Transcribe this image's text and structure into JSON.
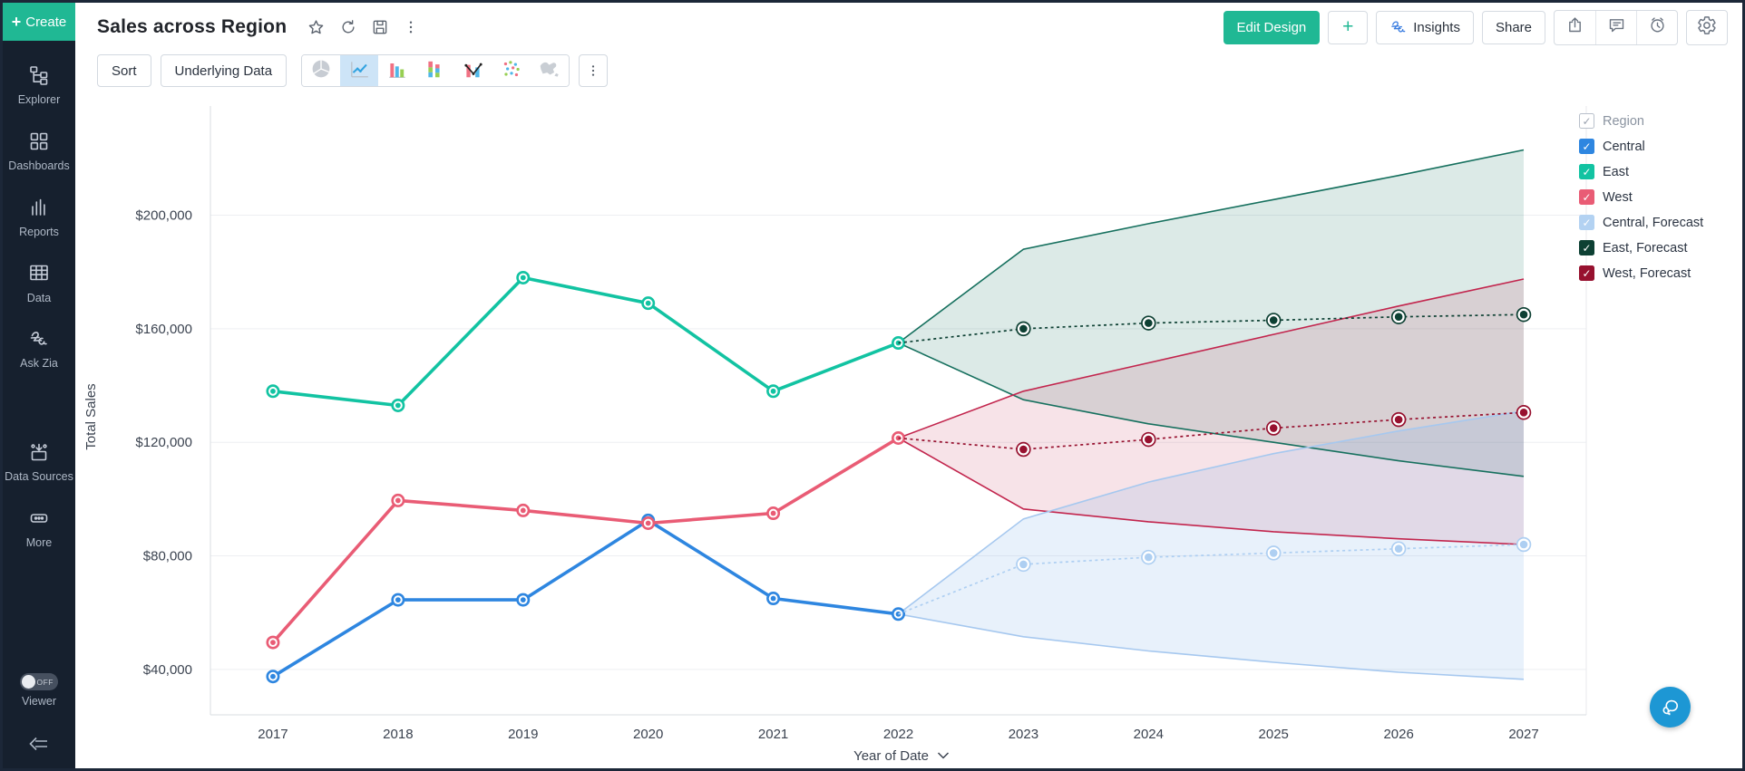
{
  "sidebar": {
    "create_label": "Create",
    "items": [
      {
        "icon": "explorer-icon",
        "label": "Explorer"
      },
      {
        "icon": "dashboards-icon",
        "label": "Dashboards"
      },
      {
        "icon": "reports-icon",
        "label": "Reports"
      },
      {
        "icon": "data-table-icon",
        "label": "Data"
      },
      {
        "icon": "zia-icon",
        "label": "Ask Zia"
      },
      {
        "icon": "data-sources-icon",
        "label": "Data Sources",
        "gap_before": true
      },
      {
        "icon": "more-ellipsis-icon",
        "label": "More"
      }
    ],
    "viewer": {
      "label": "Viewer",
      "toggle_state": "OFF"
    }
  },
  "header": {
    "title": "Sales across Region",
    "title_icons": [
      "star-icon",
      "refresh-icon",
      "save-icon",
      "kebab-icon"
    ],
    "edit_design_label": "Edit Design",
    "plus_label": "+",
    "insights_label": "Insights",
    "share_label": "Share",
    "action_icons": [
      "export-icon",
      "comment-icon",
      "alarm-icon",
      "gear-icon"
    ],
    "accent_green": "#20b894",
    "zia_blue": "#3a7de0"
  },
  "toolbar": {
    "sort_label": "Sort",
    "underlying_data_label": "Underlying Data",
    "chart_types": [
      "pie",
      "line",
      "bar",
      "stacked-bar",
      "combo",
      "scatter",
      "map"
    ],
    "selected_chart_type": "line"
  },
  "legend": {
    "title": "Region",
    "items": [
      {
        "label": "Central",
        "color": "#2e86e0"
      },
      {
        "label": "East",
        "color": "#12c3a2"
      },
      {
        "label": "West",
        "color": "#e95c75"
      },
      {
        "label": "Central, Forecast",
        "color": "#b3d2f2"
      },
      {
        "label": "East, Forecast",
        "color": "#0d4033"
      },
      {
        "label": "West, Forecast",
        "color": "#97112f"
      }
    ]
  },
  "chart_data": {
    "type": "line",
    "title": "Sales across Region",
    "xlabel": "Year of Date",
    "ylabel": "Total Sales",
    "x_categories": [
      "2017",
      "2018",
      "2019",
      "2020",
      "2021",
      "2022",
      "2023",
      "2024",
      "2025",
      "2026",
      "2027"
    ],
    "ytick_labels": [
      "$40,000",
      "$80,000",
      "$120,000",
      "$160,000",
      "$200,000"
    ],
    "ytick_values": [
      40000,
      80000,
      120000,
      160000,
      200000
    ],
    "ylim": [
      24000,
      234000
    ],
    "forecast_start_index": 5,
    "series": [
      {
        "name": "Central",
        "type": "actual",
        "color": "#2e86e0",
        "values": [
          37500,
          64500,
          64500,
          92500,
          65000,
          59500,
          null,
          null,
          null,
          null,
          null
        ]
      },
      {
        "name": "East",
        "type": "actual",
        "color": "#12c3a2",
        "values": [
          138000,
          133000,
          178000,
          169000,
          138000,
          155000,
          null,
          null,
          null,
          null,
          null
        ]
      },
      {
        "name": "West",
        "type": "actual",
        "color": "#e95c75",
        "values": [
          49500,
          99500,
          96000,
          91500,
          95000,
          121500,
          null,
          null,
          null,
          null,
          null
        ]
      },
      {
        "name": "East, Forecast",
        "type": "forecast",
        "band_order": 1,
        "color": "#0d4033",
        "band_edge": "#16705e",
        "band_fill": "rgba(22,112,94,0.15)",
        "values": [
          null,
          null,
          null,
          null,
          null,
          155000,
          160000,
          162000,
          163000,
          164200,
          165000
        ],
        "band_upper": [
          null,
          null,
          null,
          null,
          null,
          155000,
          188000,
          197000,
          205500,
          214000,
          223000
        ],
        "band_lower": [
          null,
          null,
          null,
          null,
          null,
          155000,
          135000,
          126500,
          120000,
          113500,
          108000
        ]
      },
      {
        "name": "West, Forecast",
        "type": "forecast",
        "band_order": 2,
        "color": "#97112f",
        "band_edge": "#c2254d",
        "band_fill": "rgba(194,37,77,0.13)",
        "values": [
          null,
          null,
          null,
          null,
          null,
          121500,
          117500,
          121000,
          125000,
          128000,
          130500
        ],
        "band_upper": [
          null,
          null,
          null,
          null,
          null,
          121500,
          138000,
          148000,
          158000,
          168000,
          177500
        ],
        "band_lower": [
          null,
          null,
          null,
          null,
          null,
          121500,
          96500,
          92000,
          88500,
          86000,
          84000
        ]
      },
      {
        "name": "Central, Forecast",
        "type": "forecast",
        "band_order": 3,
        "color": "#aecff2",
        "band_edge": "#a6c8ef",
        "band_fill": "rgba(110,165,230,0.16)",
        "values": [
          null,
          null,
          null,
          null,
          null,
          59500,
          77000,
          79500,
          81000,
          82500,
          84000
        ],
        "band_upper": [
          null,
          null,
          null,
          null,
          null,
          59500,
          93000,
          106000,
          116000,
          124000,
          131000
        ],
        "band_lower": [
          null,
          null,
          null,
          null,
          null,
          59500,
          51500,
          46500,
          42500,
          39000,
          36500
        ]
      }
    ]
  }
}
